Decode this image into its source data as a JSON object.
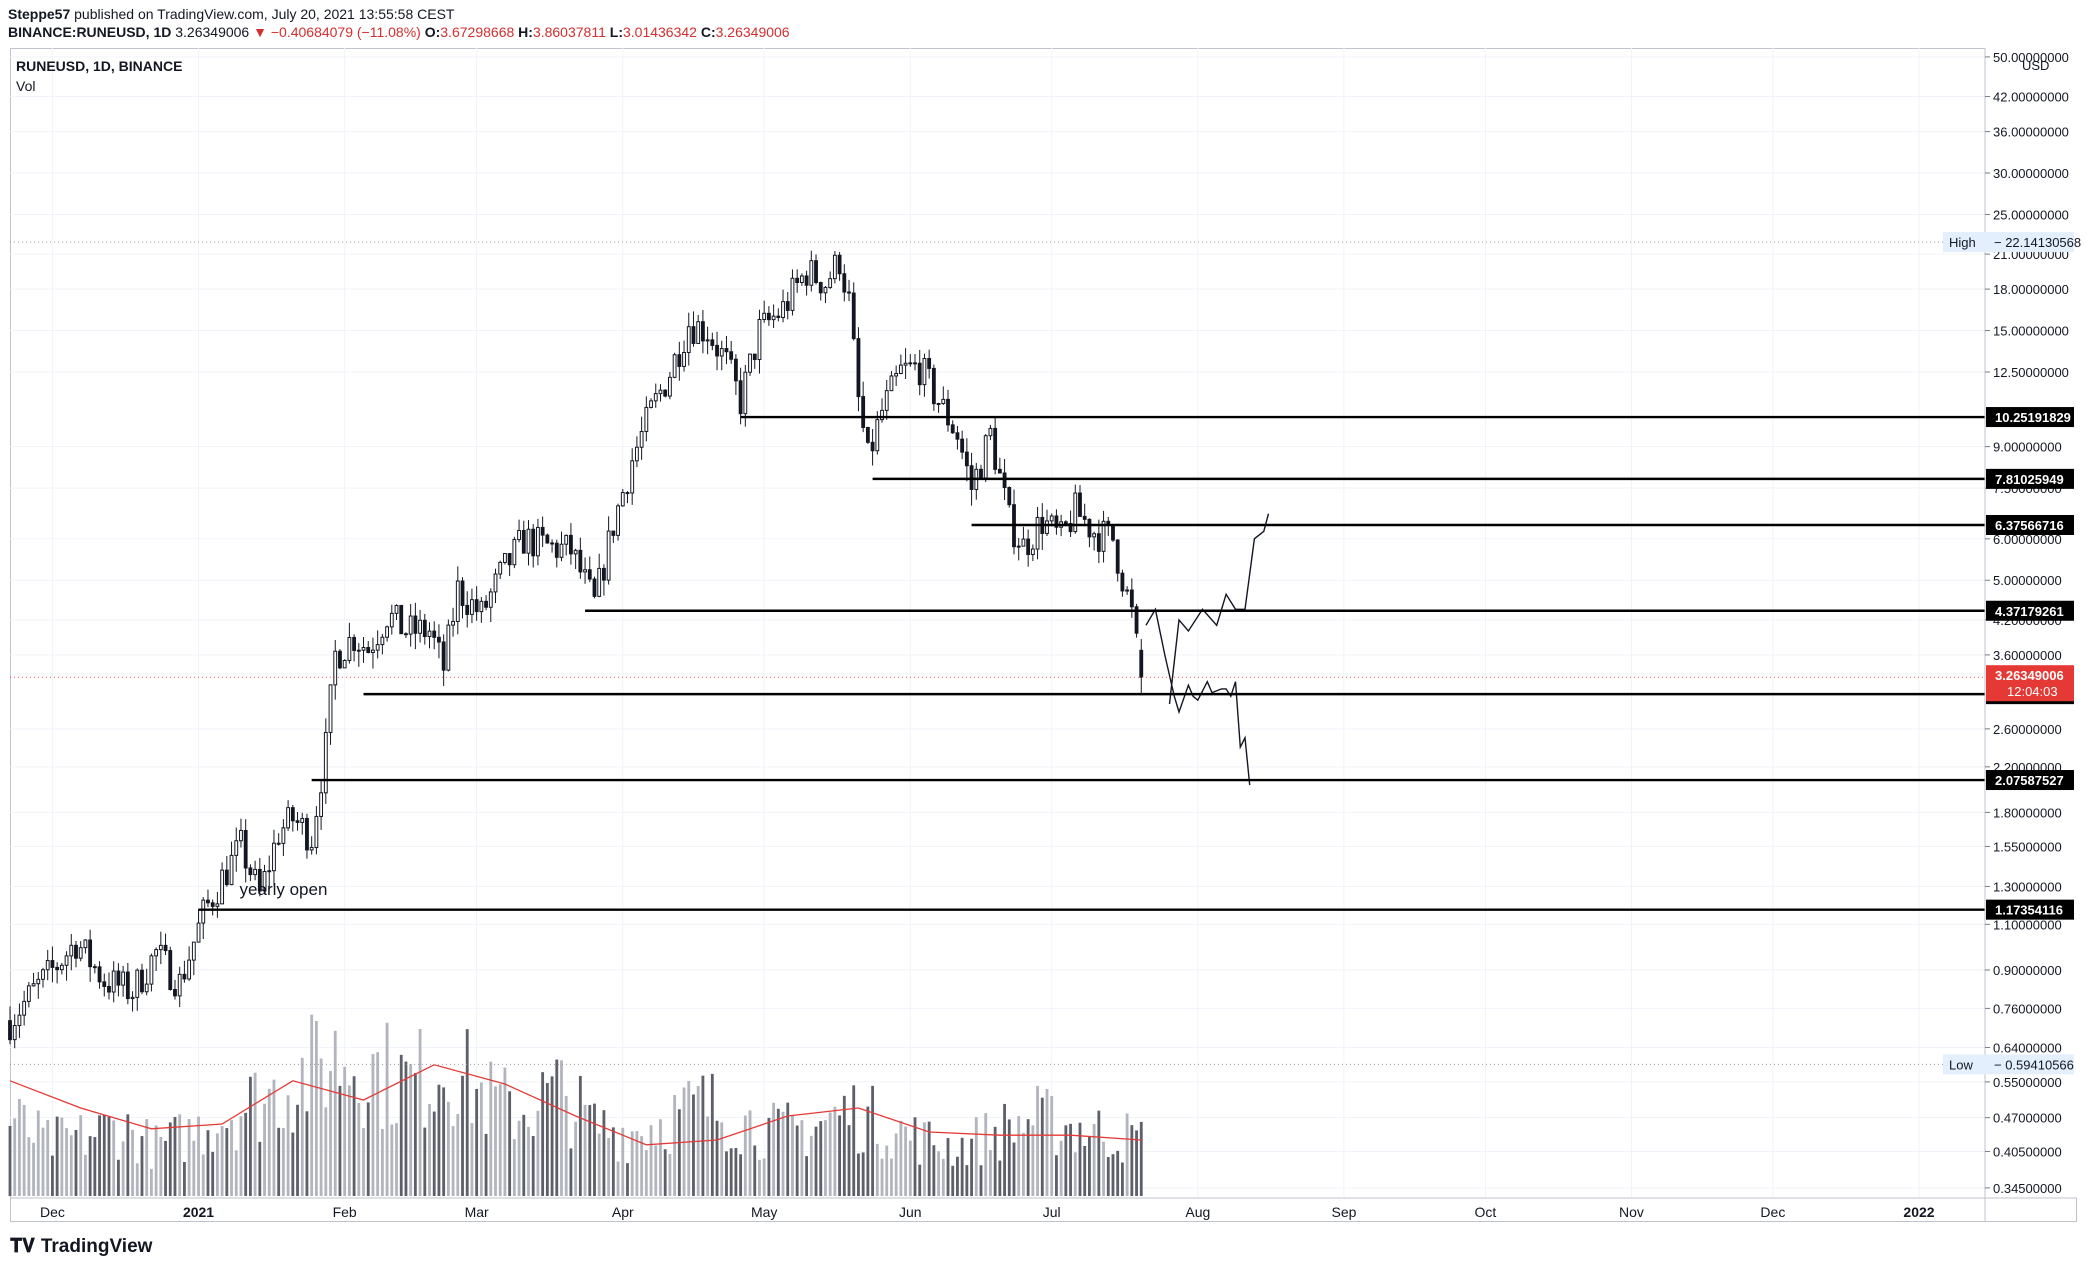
{
  "header": {
    "author": "Steppe57",
    "published": "published on TradingView.com, July 20, 2021 13:55:58 CEST",
    "ticker": "BINANCE:RUNEUSD, 1D",
    "price": "3.26349006",
    "change": "▼ −0.40684079 (−11.08%)",
    "o_label": "O:",
    "o_val": "3.67298668",
    "h_label": "H:",
    "h_val": "3.86037811",
    "l_label": "L:",
    "l_val": "3.01436342",
    "c_label": "C:",
    "c_val": "3.26349006"
  },
  "legend": {
    "symbol": "RUNEUSD, 1D, BINANCE",
    "vol": "Vol"
  },
  "footer": {
    "brand": "TradingView"
  },
  "colors": {
    "up": "#ffffff",
    "down": "#131722",
    "candle_stroke": "#131722",
    "ma": "#e53935",
    "vol_dark": "#5d606b",
    "vol_light": "#b2b5be",
    "price_badge": "#e53935",
    "level_badge": "#000000",
    "hilo_badge": "#e3effd"
  },
  "chart_data": {
    "type": "candlestick",
    "y_scale": "log",
    "ylim": [
      0.33,
      52
    ],
    "currency": "USD",
    "y_ticks": [
      "50.00000000",
      "42.00000000",
      "36.00000000",
      "30.00000000",
      "25.00000000",
      "21.00000000",
      "18.00000000",
      "15.00000000",
      "12.50000000",
      "9.00000000",
      "7.50000000",
      "6.00000000",
      "5.00000000",
      "4.20000000",
      "3.60000000",
      "2.60000000",
      "2.20000000",
      "1.80000000",
      "1.55000000",
      "1.30000000",
      "1.10000000",
      "0.90000000",
      "0.76000000",
      "0.64000000",
      "0.55000000",
      "0.47000000",
      "0.40500000",
      "0.34500000"
    ],
    "x_range": [
      "2020-11-22",
      "2022-01-15"
    ],
    "x_ticks": [
      {
        "label": "Dec",
        "date": "2020-12-01"
      },
      {
        "label": "2021",
        "date": "2021-01-01"
      },
      {
        "label": "Feb",
        "date": "2021-02-01"
      },
      {
        "label": "Mar",
        "date": "2021-03-01"
      },
      {
        "label": "Apr",
        "date": "2021-04-01"
      },
      {
        "label": "May",
        "date": "2021-05-01"
      },
      {
        "label": "Jun",
        "date": "2021-06-01"
      },
      {
        "label": "Jul",
        "date": "2021-07-01"
      },
      {
        "label": "Aug",
        "date": "2021-08-01"
      },
      {
        "label": "Sep",
        "date": "2021-09-01"
      },
      {
        "label": "Oct",
        "date": "2021-10-01"
      },
      {
        "label": "Nov",
        "date": "2021-11-01"
      },
      {
        "label": "Dec",
        "date": "2021-12-01"
      },
      {
        "label": "2022",
        "date": "2022-01-01"
      }
    ],
    "price_anchors": [
      [
        "2020-11-22",
        0.72
      ],
      [
        "2020-11-27",
        0.82
      ],
      [
        "2020-12-02",
        0.92
      ],
      [
        "2020-12-06",
        1.02
      ],
      [
        "2020-12-12",
        0.86
      ],
      [
        "2020-12-18",
        0.82
      ],
      [
        "2020-12-23",
        0.97
      ],
      [
        "2020-12-28",
        0.85
      ],
      [
        "2021-01-02",
        1.15
      ],
      [
        "2021-01-06",
        1.35
      ],
      [
        "2021-01-10",
        1.55
      ],
      [
        "2021-01-14",
        1.25
      ],
      [
        "2021-01-18",
        1.65
      ],
      [
        "2021-01-21",
        1.75
      ],
      [
        "2021-01-25",
        1.62
      ],
      [
        "2021-01-28",
        2.4
      ],
      [
        "2021-01-30",
        3.6
      ],
      [
        "2021-02-03",
        3.9
      ],
      [
        "2021-02-06",
        3.7
      ],
      [
        "2021-02-10",
        4.3
      ],
      [
        "2021-02-14",
        4.0
      ],
      [
        "2021-02-19",
        4.0
      ],
      [
        "2021-02-22",
        3.4
      ],
      [
        "2021-02-25",
        4.8
      ],
      [
        "2021-03-02",
        4.3
      ],
      [
        "2021-03-06",
        5.1
      ],
      [
        "2021-03-11",
        6.0
      ],
      [
        "2021-03-16",
        5.8
      ],
      [
        "2021-03-21",
        5.7
      ],
      [
        "2021-03-26",
        4.5
      ],
      [
        "2021-03-30",
        6.4
      ],
      [
        "2021-04-03",
        8.5
      ],
      [
        "2021-04-07",
        10.5
      ],
      [
        "2021-04-11",
        12.5
      ],
      [
        "2021-04-15",
        15.5
      ],
      [
        "2021-04-19",
        15.0
      ],
      [
        "2021-04-23",
        13.0
      ],
      [
        "2021-04-26",
        11.0
      ],
      [
        "2021-04-30",
        15.0
      ],
      [
        "2021-05-05",
        16.5
      ],
      [
        "2021-05-10",
        19.5
      ],
      [
        "2021-05-14",
        18.5
      ],
      [
        "2021-05-17",
        20.5
      ],
      [
        "2021-05-19",
        17.0
      ],
      [
        "2021-05-21",
        11.0
      ],
      [
        "2021-05-23",
        8.5
      ],
      [
        "2021-05-26",
        10.5
      ],
      [
        "2021-05-30",
        12.5
      ],
      [
        "2021-06-03",
        12.8
      ],
      [
        "2021-06-07",
        11.0
      ],
      [
        "2021-06-11",
        9.5
      ],
      [
        "2021-06-14",
        7.5
      ],
      [
        "2021-06-18",
        9.5
      ],
      [
        "2021-06-22",
        6.5
      ],
      [
        "2021-06-25",
        5.8
      ],
      [
        "2021-06-29",
        6.5
      ],
      [
        "2021-07-03",
        6.0
      ],
      [
        "2021-07-06",
        6.8
      ],
      [
        "2021-07-10",
        6.2
      ],
      [
        "2021-07-14",
        6.0
      ],
      [
        "2021-07-18",
        4.3
      ],
      [
        "2021-07-20",
        3.26
      ]
    ],
    "volume_anchors": [
      0.55,
      0.38,
      0.42,
      0.5,
      0.35,
      0.45,
      0.6,
      0.7,
      0.85,
      1.0,
      0.9,
      0.8,
      0.95,
      0.7,
      0.6,
      0.75,
      0.5,
      0.45,
      0.55,
      0.65,
      0.55,
      0.45,
      0.5,
      0.6,
      0.5,
      0.4,
      0.35,
      0.45,
      0.55,
      0.5,
      0.45,
      0.4
    ],
    "volume_ma_anchors": [
      0.72,
      0.55,
      0.42,
      0.45,
      0.72,
      0.6,
      0.82,
      0.7,
      0.5,
      0.32,
      0.35,
      0.5,
      0.55,
      0.4,
      0.38,
      0.38,
      0.35
    ],
    "levels": [
      {
        "value": 10.25191829,
        "label": "10.25191829",
        "from": "2021-04-26"
      },
      {
        "value": 7.81025949,
        "label": "7.81025949",
        "from": "2021-05-24"
      },
      {
        "value": 6.37566716,
        "label": "6.37566716",
        "from": "2021-06-14"
      },
      {
        "value": 4.37179261,
        "label": "4.37179261",
        "from": "2021-03-24"
      },
      {
        "value": 3.0292943,
        "label": "3.02929430",
        "from": "2021-02-05"
      },
      {
        "value": 2.07587527,
        "label": "2.07587527",
        "from": "2021-01-25"
      },
      {
        "value": 1.17354116,
        "label": "1.17354116",
        "from": "2021-01-01"
      }
    ],
    "current_price": {
      "value": 3.26349006,
      "label": "3.26349006",
      "countdown": "12:04:03"
    },
    "high": {
      "label": "High",
      "value": 22.14130568,
      "text": "22.14130568"
    },
    "low": {
      "label": "Low",
      "value": 0.59410566,
      "text": "0.59410566"
    },
    "annotation": {
      "text": "yearly open",
      "date": "2021-01-08",
      "value": 1.24
    },
    "projection_path": [
      [
        "2021-07-21",
        4.1
      ],
      [
        "2021-07-23",
        4.4
      ],
      [
        "2021-07-25",
        3.6
      ],
      [
        "2021-07-27",
        3.0
      ],
      [
        "2021-07-28",
        2.8
      ],
      [
        "2021-07-30",
        3.15
      ],
      [
        "2021-07-31",
        3.0
      ],
      [
        "2021-08-01",
        2.95
      ],
      [
        "2021-08-03",
        3.2
      ],
      [
        "2021-08-04",
        3.05
      ],
      [
        "2021-08-06",
        3.1
      ],
      [
        "2021-08-07",
        3.1
      ],
      [
        "2021-08-08",
        3.0
      ],
      [
        "2021-08-09",
        3.2
      ],
      [
        "2021-08-10",
        2.4
      ],
      [
        "2021-08-11",
        2.5
      ],
      [
        "2021-08-12",
        2.03
      ]
    ],
    "projection_path_2": [
      [
        "2021-07-26",
        2.9
      ],
      [
        "2021-07-28",
        4.2
      ],
      [
        "2021-07-30",
        4.0
      ],
      [
        "2021-08-02",
        4.4
      ],
      [
        "2021-08-05",
        4.1
      ],
      [
        "2021-08-07",
        4.7
      ],
      [
        "2021-08-09",
        4.4
      ],
      [
        "2021-08-11",
        4.4
      ],
      [
        "2021-08-13",
        6.0
      ],
      [
        "2021-08-15",
        6.2
      ],
      [
        "2021-08-16",
        6.7
      ]
    ]
  }
}
